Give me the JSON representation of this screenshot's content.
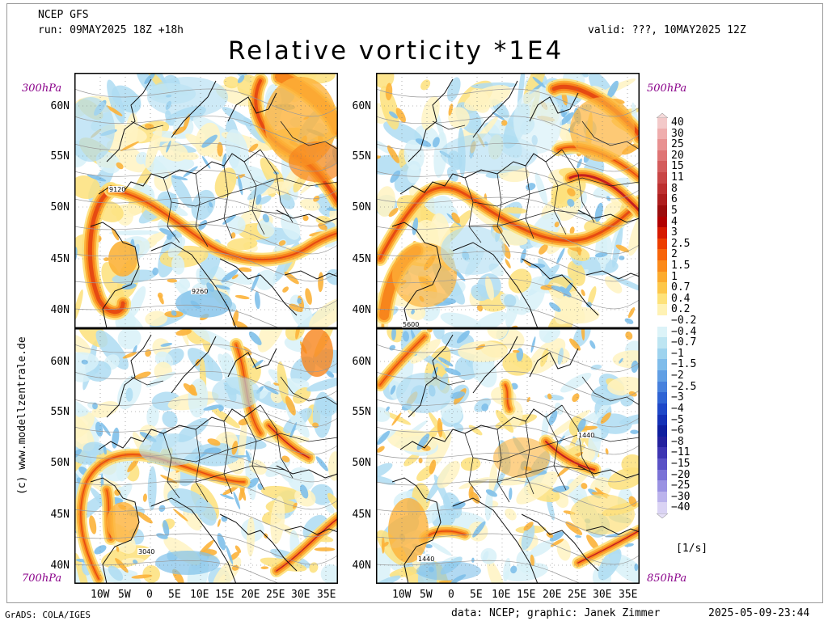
{
  "header": {
    "model": "NCEP GFS",
    "run": "run: 09MAY2025 18Z +18h",
    "valid": "valid: ???, 10MAY2025 12Z",
    "title": "Relative vorticity *1E4"
  },
  "panels": [
    {
      "level": "300hPa",
      "contour_labels": [
        "9120",
        "9260"
      ]
    },
    {
      "level": "500hPa",
      "contour_labels": [
        "5600"
      ]
    },
    {
      "level": "700hPa",
      "contour_labels": [
        "3040"
      ]
    },
    {
      "level": "850hPa",
      "contour_labels": [
        "1440",
        "1440"
      ]
    }
  ],
  "latitude_labels": [
    "60N",
    "55N",
    "50N",
    "45N",
    "40N"
  ],
  "longitude_labels": [
    "10W",
    "5W",
    "0",
    "5E",
    "10E",
    "15E",
    "20E",
    "25E",
    "30E",
    "35E"
  ],
  "colorbar": {
    "labels": [
      "40",
      "30",
      "25",
      "20",
      "15",
      "11",
      "8",
      "6",
      "5",
      "4",
      "3",
      "2.5",
      "2",
      "1.5",
      "1",
      "0.7",
      "0.4",
      "0.2",
      "−0.2",
      "−0.4",
      "−0.7",
      "−1",
      "−1.5",
      "−2",
      "−2.5",
      "−3",
      "−4",
      "−5",
      "−6",
      "−8",
      "−11",
      "−15",
      "−20",
      "−25",
      "−30",
      "−40"
    ],
    "colors": [
      "#f3c9c9",
      "#efadad",
      "#e89191",
      "#df7575",
      "#d45c5c",
      "#c94646",
      "#bd3030",
      "#ae1e1e",
      "#9b0d0d",
      "#b10000",
      "#d61a00",
      "#ec3d00",
      "#f7640a",
      "#fb8a1a",
      "#fcab2e",
      "#fdc74a",
      "#fee27a",
      "#fff2b4",
      "#ffffff",
      "#dcf3f8",
      "#bde5f2",
      "#9ed3ee",
      "#7fbcea",
      "#619fe4",
      "#4781dd",
      "#2f64d4",
      "#1e48c8",
      "#1431b6",
      "#0f1f9f",
      "#23219e",
      "#3d35b2",
      "#5a52c6",
      "#7a72d6",
      "#9a92e2",
      "#bbb3ec",
      "#dad3f4"
    ],
    "unit": "[1/s]"
  },
  "sidebar_text": "(c) www.modellzentrale.de",
  "footer": {
    "left": "GrADS: COLA/IGES",
    "center": "data: NCEP; graphic: Janek Zimmer",
    "right": "2025-05-09-23:44"
  }
}
